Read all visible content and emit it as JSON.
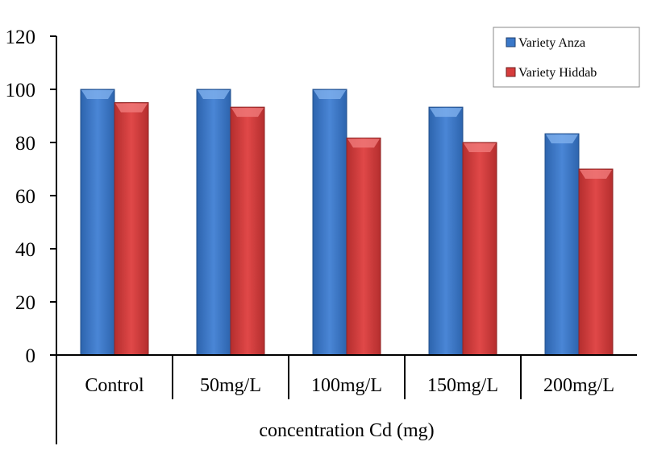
{
  "chart_data": {
    "type": "bar",
    "title": "",
    "xlabel": "concentration Cd (mg)",
    "ylabel": "",
    "ylim": [
      0,
      120
    ],
    "yticks": [
      0,
      20,
      40,
      60,
      80,
      100,
      120
    ],
    "grid": false,
    "legend_position": "top-right",
    "categories": [
      "Control",
      "50mg/L",
      "100mg/L",
      "150mg/L",
      "200mg/L"
    ],
    "series": [
      {
        "name": "Variety Anza",
        "color": "#3a78c9",
        "values": [
          100,
          100,
          100,
          93.3,
          83.3
        ]
      },
      {
        "name": "Variety Hiddab",
        "color": "#d63c3c",
        "values": [
          95,
          93.3,
          81.7,
          80,
          70
        ]
      }
    ]
  }
}
